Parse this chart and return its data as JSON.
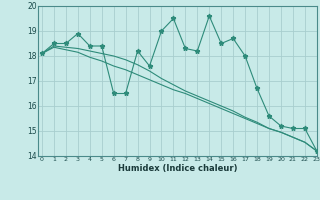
{
  "xlabel": "Humidex (Indice chaleur)",
  "ylabel": "",
  "background_color": "#c8eae8",
  "grid_color": "#a8cece",
  "line_color": "#2e8b7a",
  "x_values": [
    0,
    1,
    2,
    3,
    4,
    5,
    6,
    7,
    8,
    9,
    10,
    11,
    12,
    13,
    14,
    15,
    16,
    17,
    18,
    19,
    20,
    21,
    22,
    23
  ],
  "series1": [
    18.1,
    18.5,
    18.5,
    18.9,
    18.4,
    18.4,
    16.5,
    16.5,
    18.2,
    17.6,
    19.0,
    19.5,
    18.3,
    18.2,
    19.6,
    18.5,
    18.7,
    18.0,
    16.7,
    15.6,
    15.2,
    15.1,
    15.1,
    14.2
  ],
  "series2": [
    18.1,
    18.35,
    18.25,
    18.15,
    17.95,
    17.8,
    17.6,
    17.45,
    17.25,
    17.05,
    16.85,
    16.65,
    16.5,
    16.3,
    16.1,
    15.9,
    15.7,
    15.5,
    15.3,
    15.1,
    14.95,
    14.75,
    14.55,
    14.2
  ],
  "series3": [
    18.1,
    18.4,
    18.35,
    18.3,
    18.2,
    18.1,
    18.0,
    17.85,
    17.65,
    17.4,
    17.1,
    16.85,
    16.6,
    16.4,
    16.2,
    16.0,
    15.8,
    15.55,
    15.35,
    15.1,
    14.95,
    14.75,
    14.55,
    14.2
  ],
  "ylim": [
    14,
    20
  ],
  "xlim": [
    -0.3,
    23
  ],
  "yticks": [
    14,
    15,
    16,
    17,
    18,
    19,
    20
  ],
  "xticks": [
    0,
    1,
    2,
    3,
    4,
    5,
    6,
    7,
    8,
    9,
    10,
    11,
    12,
    13,
    14,
    15,
    16,
    17,
    18,
    19,
    20,
    21,
    22,
    23
  ]
}
